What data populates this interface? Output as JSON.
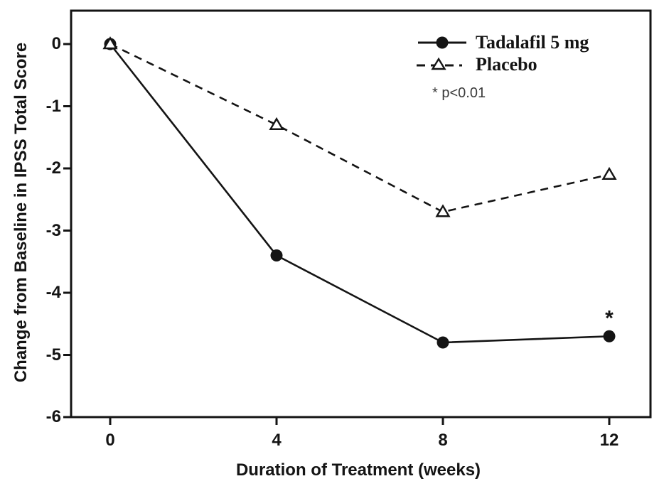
{
  "chart_data": {
    "type": "line",
    "title": "",
    "xlabel": "Duration of Treatment (weeks)",
    "ylabel": "Change from Baseline in IPSS Total Score",
    "x": [
      0,
      4,
      8,
      12
    ],
    "xticks": [
      0,
      4,
      8,
      12
    ],
    "yticks": [
      0,
      -1,
      -2,
      -3,
      -4,
      -5,
      -6
    ],
    "xlim": [
      -0.94,
      12.99
    ],
    "ylim": [
      -6,
      0.54
    ],
    "grid": false,
    "legend_position": "inside-top-right",
    "line_color": "#141414",
    "series": [
      {
        "name": "Tadalafil 5 mg",
        "values": [
          0,
          -3.4,
          -4.8,
          -4.7
        ],
        "line_style": "solid",
        "marker": "filled-circle"
      },
      {
        "name": "Placebo",
        "values": [
          0,
          -1.3,
          -2.7,
          -2.1
        ],
        "line_style": "dashed",
        "marker": "open-triangle"
      }
    ],
    "point_annotation": {
      "series": "Tadalafil 5 mg",
      "x": 12,
      "text": "*"
    },
    "legend_note": "* p<0.01"
  }
}
